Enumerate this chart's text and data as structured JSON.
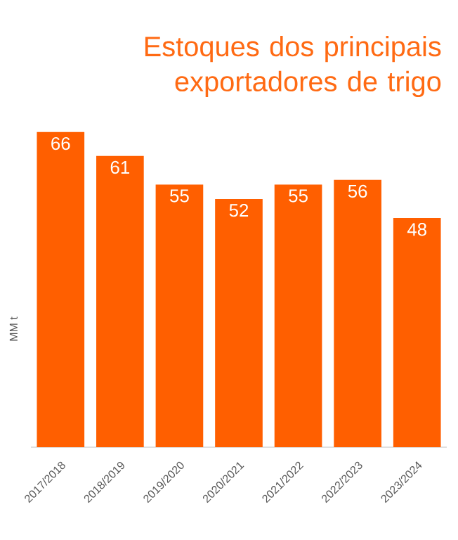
{
  "chart_data": {
    "type": "bar",
    "title": "Estoques dos principais exportadores de trigo",
    "ylabel": "MM t",
    "categories": [
      "2017/2018",
      "2018/2019",
      "2019/2020",
      "2020/2021",
      "2021/2022",
      "2022/2023",
      "2023/2024"
    ],
    "values": [
      66,
      61,
      55,
      52,
      55,
      56,
      48
    ],
    "color": "#ff5f00",
    "data_labels": true,
    "tick_labels": "x"
  }
}
